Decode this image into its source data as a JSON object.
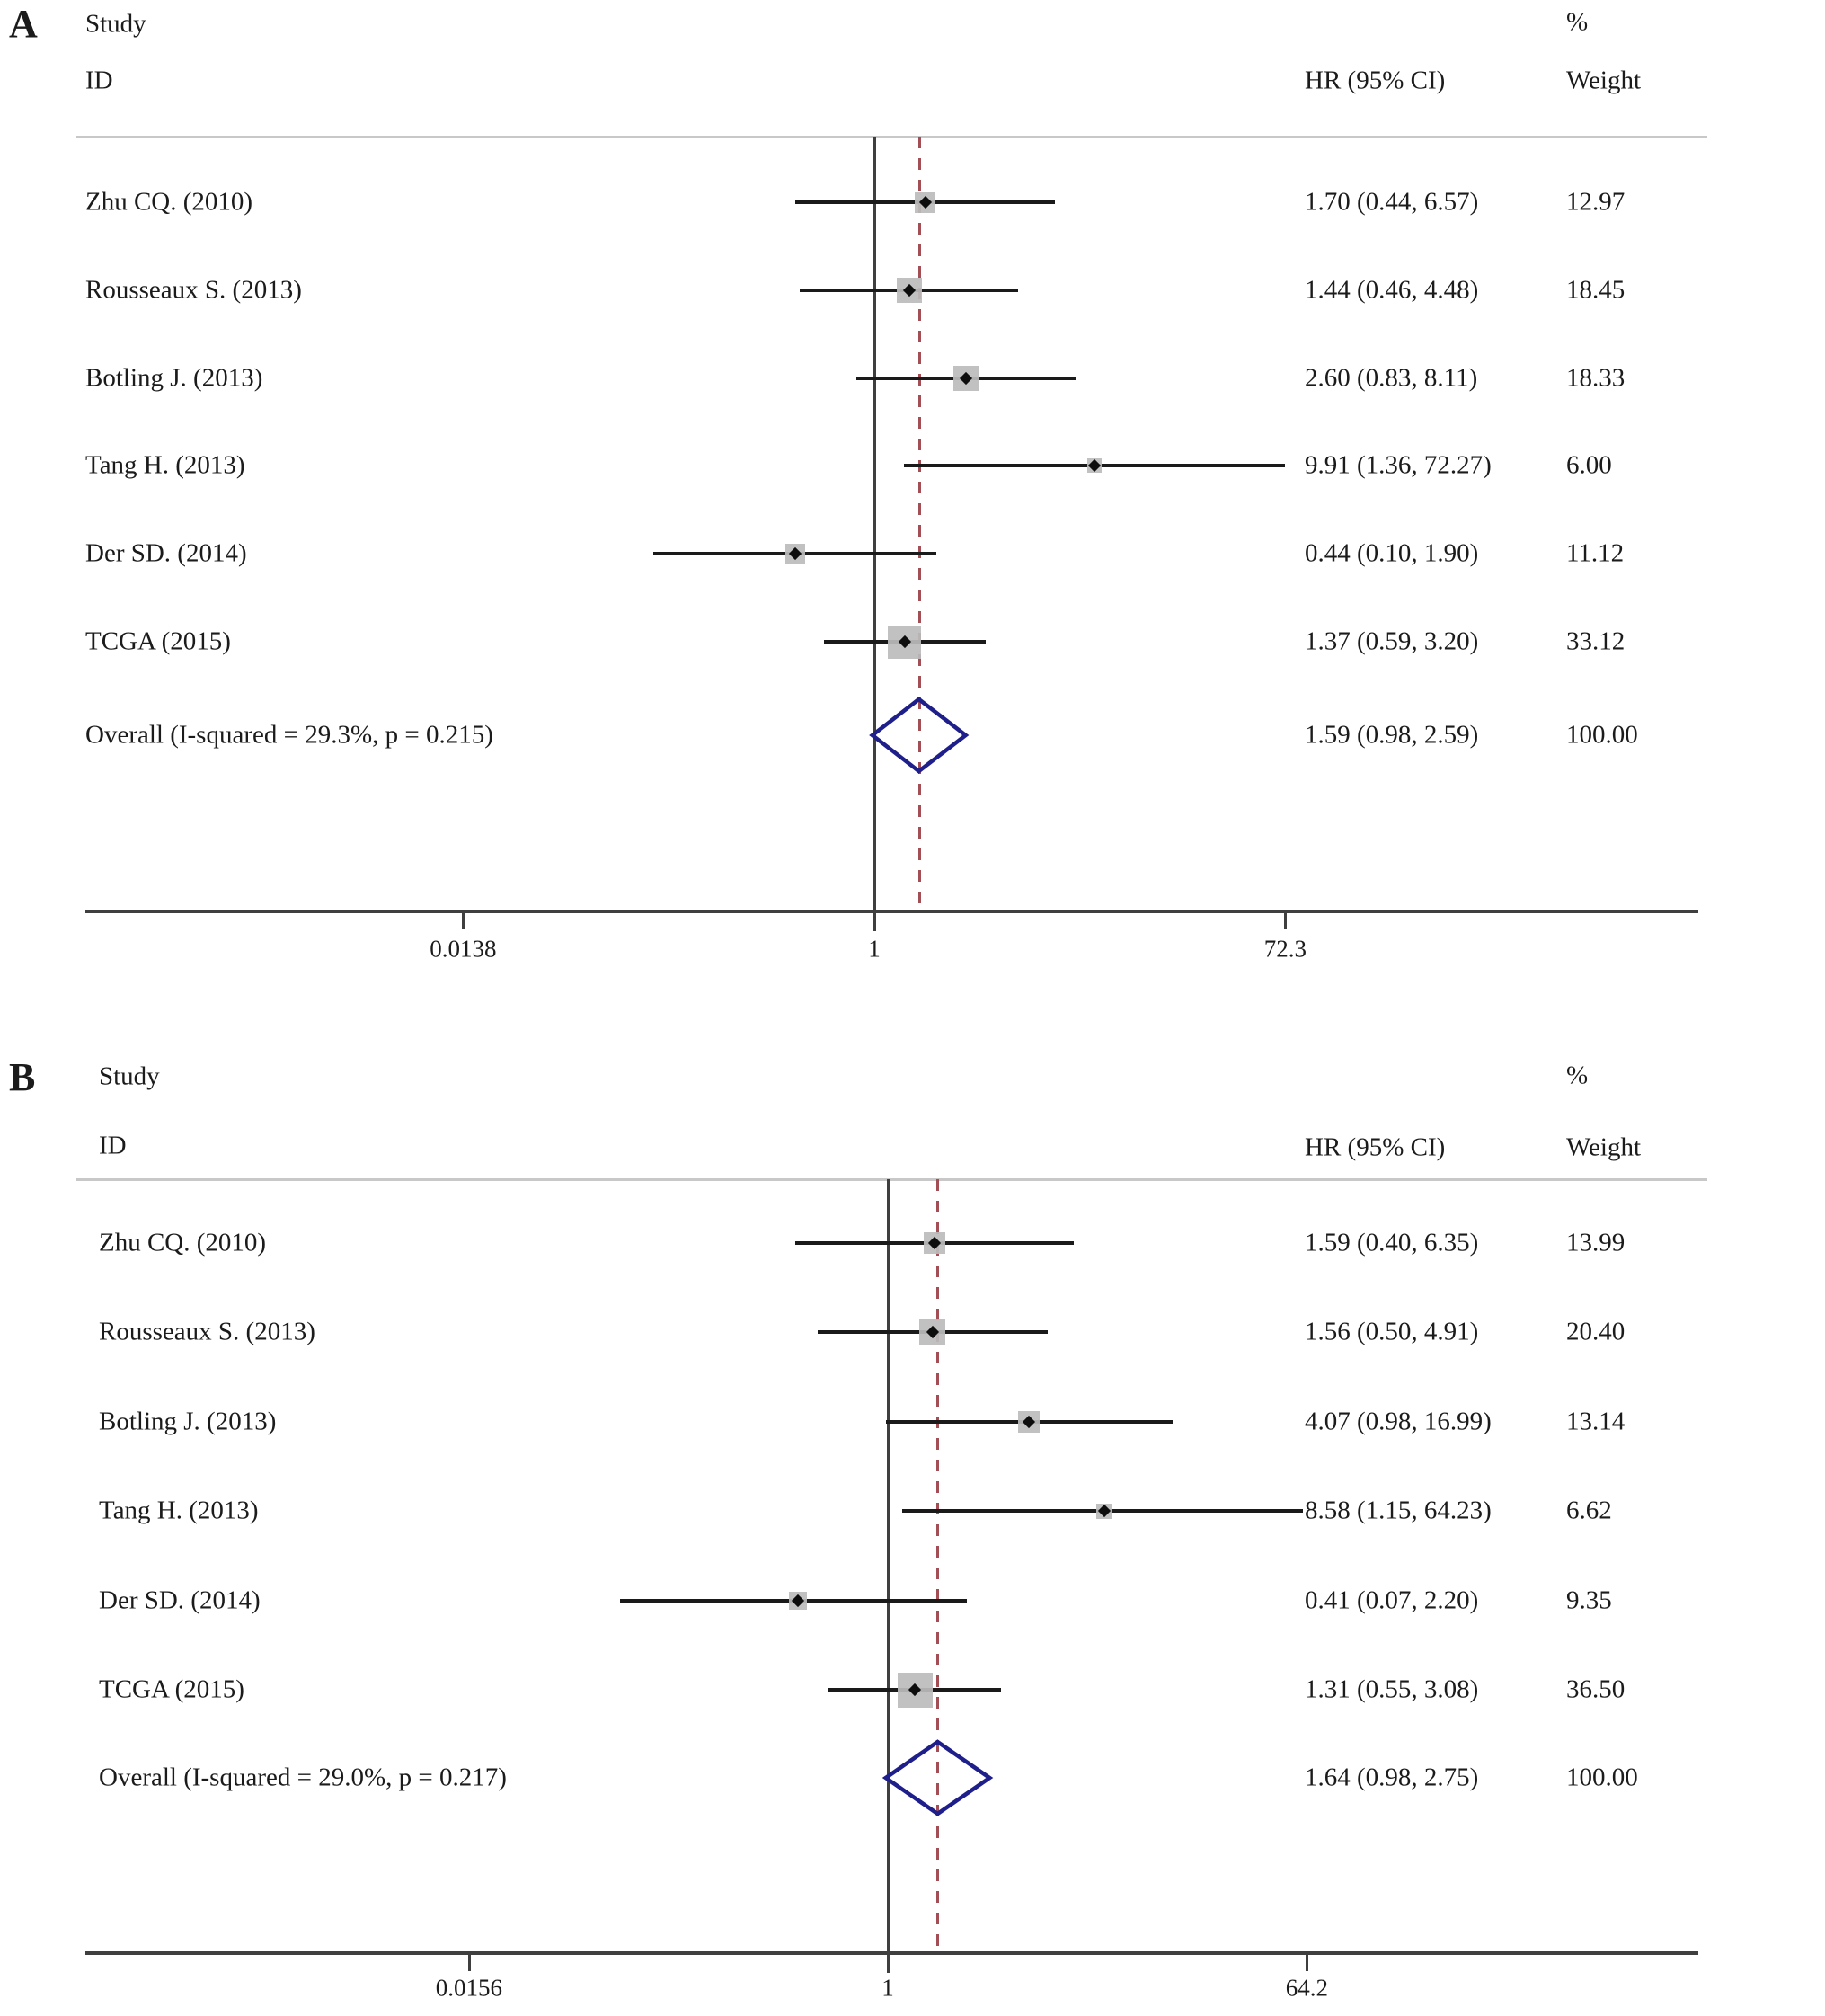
{
  "figure_title": "",
  "colors": {
    "background": "#ffffff",
    "text": "#1b1b1b",
    "ci_line": "#1a1a1a",
    "square": "#bcbcbc",
    "point_marker": "#0d0d0d",
    "diamond_outline": "#1f1f8c",
    "null_line": "#3f3f3f",
    "overall_dashed_line": "#a34e55",
    "axis": "#3f3f3f",
    "header_rule": "#c8c8c8"
  },
  "chart_data": [
    {
      "type": "forest",
      "panel_label": "A",
      "xscale": "log",
      "col_headers": {
        "study": "Study",
        "id": "ID",
        "pct": "%",
        "hr": "HR (95% CI)",
        "weight": "Weight"
      },
      "studies": [
        {
          "label": "Zhu CQ. (2010)",
          "hr": 1.7,
          "lo": 0.44,
          "hi": 6.57,
          "hr_text": "1.70 (0.44, 6.57)",
          "weight": 12.97,
          "weight_text": "12.97"
        },
        {
          "label": "Rousseaux S. (2013)",
          "hr": 1.44,
          "lo": 0.46,
          "hi": 4.48,
          "hr_text": "1.44 (0.46, 4.48)",
          "weight": 18.45,
          "weight_text": "18.45"
        },
        {
          "label": "Botling J. (2013)",
          "hr": 2.6,
          "lo": 0.83,
          "hi": 8.11,
          "hr_text": "2.60 (0.83, 8.11)",
          "weight": 18.33,
          "weight_text": "18.33"
        },
        {
          "label": "Tang H. (2013)",
          "hr": 9.91,
          "lo": 1.36,
          "hi": 72.27,
          "hr_text": "9.91 (1.36, 72.27)",
          "weight": 6.0,
          "weight_text": "6.00"
        },
        {
          "label": "Der SD. (2014)",
          "hr": 0.44,
          "lo": 0.1,
          "hi": 1.9,
          "hr_text": "0.44 (0.10, 1.90)",
          "weight": 11.12,
          "weight_text": "11.12"
        },
        {
          "label": "TCGA (2015)",
          "hr": 1.37,
          "lo": 0.59,
          "hi": 3.2,
          "hr_text": "1.37 (0.59, 3.20)",
          "weight": 33.12,
          "weight_text": "33.12"
        }
      ],
      "overall": {
        "label": "Overall  (I-squared = 29.3%, p = 0.215)",
        "hr": 1.59,
        "lo": 0.98,
        "hi": 2.59,
        "hr_text": "1.59 (0.98, 2.59)",
        "weight_text": "100.00"
      },
      "x_ticks": [
        {
          "value": 0.0138,
          "label": "0.0138"
        },
        {
          "value": 1,
          "label": "1"
        },
        {
          "value": 72.3,
          "label": "72.3"
        }
      ]
    },
    {
      "type": "forest",
      "panel_label": "B",
      "xscale": "log",
      "col_headers": {
        "study": "Study",
        "id": "ID",
        "pct": "%",
        "hr": "HR (95% CI)",
        "weight": "Weight"
      },
      "studies": [
        {
          "label": "Zhu CQ. (2010)",
          "hr": 1.59,
          "lo": 0.4,
          "hi": 6.35,
          "hr_text": "1.59 (0.40, 6.35)",
          "weight": 13.99,
          "weight_text": "13.99"
        },
        {
          "label": "Rousseaux S. (2013)",
          "hr": 1.56,
          "lo": 0.5,
          "hi": 4.91,
          "hr_text": "1.56 (0.50, 4.91)",
          "weight": 20.4,
          "weight_text": "20.40"
        },
        {
          "label": "Botling J. (2013)",
          "hr": 4.07,
          "lo": 0.98,
          "hi": 16.99,
          "hr_text": "4.07 (0.98, 16.99)",
          "weight": 13.14,
          "weight_text": "13.14"
        },
        {
          "label": "Tang H. (2013)",
          "hr": 8.58,
          "lo": 1.15,
          "hi": 64.23,
          "hr_text": "8.58 (1.15, 64.23)",
          "weight": 6.62,
          "weight_text": "6.62"
        },
        {
          "label": "Der SD. (2014)",
          "hr": 0.41,
          "lo": 0.07,
          "hi": 2.2,
          "hr_text": "0.41 (0.07, 2.20)",
          "weight": 9.35,
          "weight_text": "9.35"
        },
        {
          "label": "TCGA (2015)",
          "hr": 1.31,
          "lo": 0.55,
          "hi": 3.08,
          "hr_text": "1.31 (0.55, 3.08)",
          "weight": 36.5,
          "weight_text": "36.50"
        }
      ],
      "overall": {
        "label": "Overall  (I-squared = 29.0%, p = 0.217)",
        "hr": 1.64,
        "lo": 0.98,
        "hi": 2.75,
        "hr_text": "1.64 (0.98, 2.75)",
        "weight_text": "100.00"
      },
      "x_ticks": [
        {
          "value": 0.0156,
          "label": "0.0156"
        },
        {
          "value": 1,
          "label": "1"
        },
        {
          "value": 64.2,
          "label": "64.2"
        }
      ]
    }
  ]
}
